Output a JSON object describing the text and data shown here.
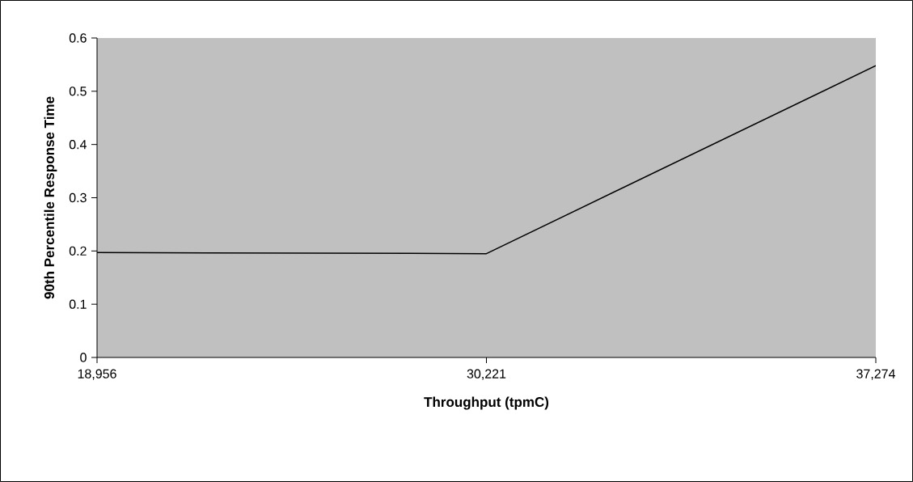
{
  "chart_data": {
    "type": "line",
    "xlabel": "Throughput (tpmC)",
    "ylabel": "90th Percentile Response Time",
    "categories": [
      "18,956",
      "30,221",
      "37,274"
    ],
    "series": [
      {
        "color": "#000000",
        "values": [
          0.197,
          0.195,
          0.548
        ]
      }
    ],
    "ylim": [
      0,
      0.6
    ],
    "yticks": [
      0,
      0.1,
      0.2,
      0.3,
      0.4,
      0.5,
      0.6
    ],
    "line_style": "solid"
  }
}
